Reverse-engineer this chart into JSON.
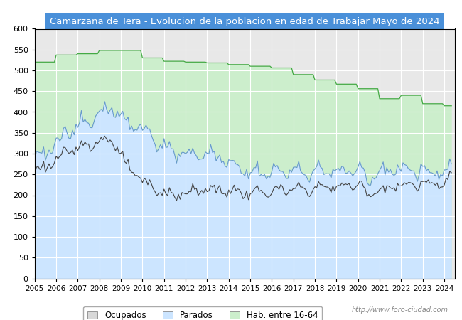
{
  "title": "Camarzana de Tera - Evolucion de la poblacion en edad de Trabajar Mayo de 2024",
  "title_bg": "#4a90d9",
  "title_color": "white",
  "ylim": [
    0,
    600
  ],
  "yticks": [
    0,
    50,
    100,
    150,
    200,
    250,
    300,
    350,
    400,
    450,
    500,
    550,
    600
  ],
  "color_hab": "#cceecc",
  "color_parados": "#cce5ff",
  "color_hab_line": "#44aa44",
  "color_parados_line": "#6699cc",
  "color_ocupados_line": "#444444",
  "legend_labels": [
    "Ocupados",
    "Parados",
    "Hab. entre 16-64"
  ],
  "watermark": "http://www.foro-ciudad.com",
  "plot_bg": "#e8e8e8",
  "grid_color": "white",
  "hab_annual": [
    520,
    537,
    540,
    548,
    548,
    530,
    522,
    520,
    518,
    514,
    510,
    506,
    490,
    477,
    467,
    456,
    432,
    440,
    420,
    415
  ],
  "years_annual": [
    2005,
    2006,
    2007,
    2008,
    2009,
    2010,
    2011,
    2012,
    2013,
    2014,
    2015,
    2016,
    2017,
    2018,
    2019,
    2020,
    2021,
    2022,
    2023,
    2024
  ]
}
